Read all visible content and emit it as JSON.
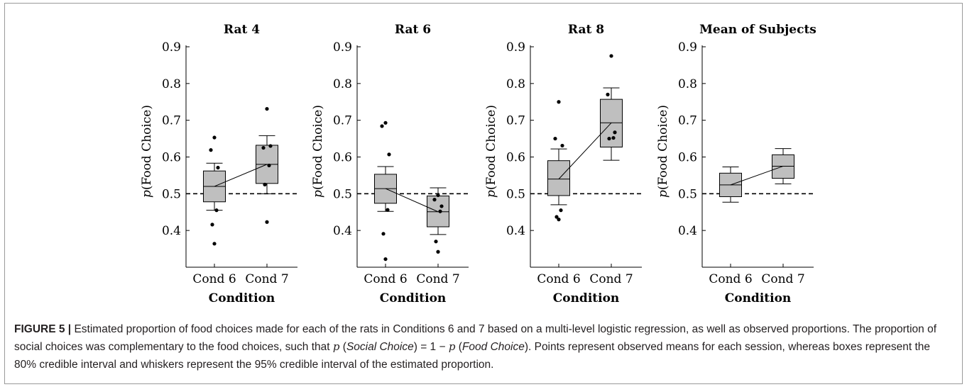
{
  "chart_data": [
    {
      "type": "box",
      "title": "Rat 4",
      "xlabel": "Condition",
      "ylabel_prefix": "p",
      "ylabel_text": "(Food Choice)",
      "categories": [
        "Cond 6",
        "Cond 7"
      ],
      "ylim": [
        0.3,
        0.9
      ],
      "yticks": [
        "0.4",
        "0.5",
        "0.6",
        "0.7",
        "0.8",
        "0.9"
      ],
      "reference_line": 0.5,
      "boxes": [
        {
          "whisker_low": 0.455,
          "q_low": 0.478,
          "median": 0.52,
          "q_high": 0.562,
          "whisker_high": 0.583
        },
        {
          "whisker_low": 0.5,
          "q_low": 0.528,
          "median": 0.58,
          "q_high": 0.632,
          "whisker_high": 0.658
        }
      ],
      "points": [
        [
          0.653,
          0.619,
          0.571,
          0.455,
          0.416,
          0.364
        ],
        [
          0.731,
          0.625,
          0.63,
          0.577,
          0.525,
          0.423
        ]
      ]
    },
    {
      "type": "box",
      "title": "Rat 6",
      "xlabel": "Condition",
      "ylabel_prefix": "p",
      "ylabel_text": "(Food Choice)",
      "categories": [
        "Cond 6",
        "Cond 7"
      ],
      "ylim": [
        0.3,
        0.9
      ],
      "yticks": [
        "0.4",
        "0.5",
        "0.6",
        "0.7",
        "0.8",
        "0.9"
      ],
      "reference_line": 0.5,
      "boxes": [
        {
          "whisker_low": 0.452,
          "q_low": 0.474,
          "median": 0.514,
          "q_high": 0.553,
          "whisker_high": 0.574
        },
        {
          "whisker_low": 0.389,
          "q_low": 0.41,
          "median": 0.451,
          "q_high": 0.494,
          "whisker_high": 0.516
        }
      ],
      "points": [
        [
          0.693,
          0.684,
          0.607,
          0.456,
          0.391,
          0.322
        ],
        [
          0.496,
          0.484,
          0.466,
          0.452,
          0.37,
          0.342
        ]
      ]
    },
    {
      "type": "box",
      "title": "Rat 8",
      "xlabel": "Condition",
      "ylabel_prefix": "p",
      "ylabel_text": "(Food Choice)",
      "categories": [
        "Cond 6",
        "Cond 7"
      ],
      "ylim": [
        0.3,
        0.9
      ],
      "yticks": [
        "0.4",
        "0.5",
        "0.6",
        "0.7",
        "0.8",
        "0.9"
      ],
      "reference_line": 0.5,
      "boxes": [
        {
          "whisker_low": 0.47,
          "q_low": 0.495,
          "median": 0.54,
          "q_high": 0.59,
          "whisker_high": 0.622
        },
        {
          "whisker_low": 0.591,
          "q_low": 0.627,
          "median": 0.693,
          "q_high": 0.757,
          "whisker_high": 0.788
        }
      ],
      "points": [
        [
          0.75,
          0.65,
          0.631,
          0.455,
          0.437,
          0.43
        ],
        [
          0.875,
          0.77,
          0.667,
          0.652,
          0.65
        ]
      ]
    },
    {
      "type": "box",
      "title": "Mean of Subjects",
      "xlabel": "Condition",
      "ylabel_prefix": "p",
      "ylabel_text": "(Food Choice)",
      "categories": [
        "Cond 6",
        "Cond 7"
      ],
      "ylim": [
        0.3,
        0.9
      ],
      "yticks": [
        "0.4",
        "0.5",
        "0.6",
        "0.7",
        "0.8",
        "0.9"
      ],
      "reference_line": 0.5,
      "boxes": [
        {
          "whisker_low": 0.477,
          "q_low": 0.492,
          "median": 0.524,
          "q_high": 0.556,
          "whisker_high": 0.573
        },
        {
          "whisker_low": 0.527,
          "q_low": 0.542,
          "median": 0.575,
          "q_high": 0.606,
          "whisker_high": 0.623
        }
      ],
      "points": [
        [],
        []
      ]
    }
  ],
  "caption": {
    "label": "FIGURE 5 |",
    "part1": " Estimated proportion of food choices made for each of the rats in Conditions 6 and 7 based on a multi-level logistic regression, as well as observed proportions. The proportion of social choices was complementary to the food choices, such that ",
    "p1": "p",
    "social_open": " (",
    "social_choice": "Social Choice",
    "eq": ") = 1 − ",
    "p2": "p",
    "food_open": " (",
    "food_choice": "Food Choice",
    "part2": "). Points represent observed means for each session, whereas boxes represent the 80% credible interval and whiskers represent the 95% credible interval of the estimated proportion."
  }
}
